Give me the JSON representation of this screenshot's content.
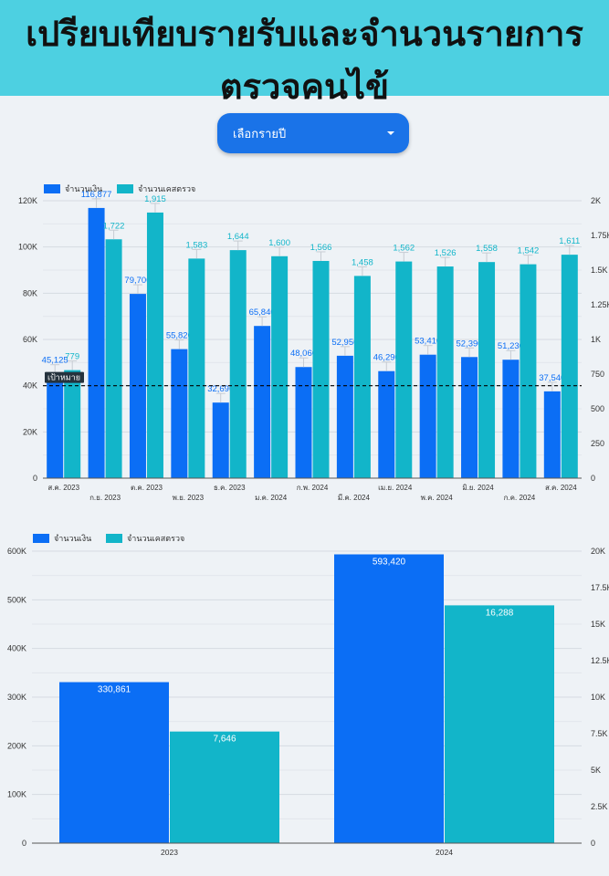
{
  "header": {
    "title": "เปรียบเทียบรายรับและจำนวนรายการตรวจคนไข้"
  },
  "filter": {
    "label": "เลือกรายปี"
  },
  "colors": {
    "header_bg": "#4dd0e1",
    "revenue": "#0b6ef5",
    "cases": "#12b5c9",
    "target_line": "#000000"
  },
  "chart_data": [
    {
      "type": "bar",
      "categories": [
        "ส.ค. 2023",
        "ก.ย. 2023",
        "ต.ค. 2023",
        "พ.ย. 2023",
        "ธ.ค. 2023",
        "ม.ค. 2024",
        "ก.พ. 2024",
        "มี.ค. 2024",
        "เม.ย. 2024",
        "พ.ค. 2024",
        "มิ.ย. 2024",
        "ก.ค. 2024",
        "ส.ค. 2024"
      ],
      "series": [
        {
          "name": "จำนวนเงิน",
          "axis": "left",
          "values": [
            45125,
            116877,
            79700,
            55820,
            32690,
            65840,
            48060,
            52950,
            46290,
            53410,
            52390,
            51230,
            37540
          ],
          "labels": [
            "45,125",
            "116,877",
            "79,700",
            "55,820",
            "32,690",
            "65,840",
            "48,060",
            "52,950",
            "46,290",
            "53,410",
            "52,390",
            "51,230",
            "37,540"
          ]
        },
        {
          "name": "จำนวนเคสตรวจ",
          "axis": "right",
          "values": [
            779,
            1722,
            1915,
            1583,
            1644,
            1600,
            1566,
            1458,
            1562,
            1526,
            1558,
            1542,
            1611
          ],
          "labels": [
            "779",
            "1,722",
            "1,915",
            "1,583",
            "1,644",
            "1,600",
            "1,566",
            "1,458",
            "1,562",
            "1,526",
            "1,558",
            "1,542",
            "1,611"
          ]
        }
      ],
      "ylim_left": [
        0,
        120000
      ],
      "yticks_left": [
        "0",
        "20K",
        "40K",
        "60K",
        "80K",
        "100K",
        "120K"
      ],
      "ylim_right": [
        0,
        2000
      ],
      "yticks_right": [
        "0",
        "250",
        "500",
        "750",
        "1K",
        "1.25K",
        "1.5K",
        "1.75K",
        "2K"
      ],
      "target": {
        "label": "เป้าหมาย",
        "value": 40000
      },
      "legend": "top-left",
      "grid": true
    },
    {
      "type": "bar",
      "categories": [
        "2023",
        "2024"
      ],
      "series": [
        {
          "name": "จำนวนเงิน",
          "axis": "left",
          "values": [
            330861,
            593420
          ],
          "labels": [
            "330,861",
            "593,420"
          ]
        },
        {
          "name": "จำนวนเคสตรวจ",
          "axis": "right",
          "values": [
            7646,
            16288
          ],
          "labels": [
            "7,646",
            "16,288"
          ]
        }
      ],
      "ylim_left": [
        0,
        600000
      ],
      "yticks_left": [
        "0",
        "100K",
        "200K",
        "300K",
        "400K",
        "500K",
        "600K"
      ],
      "ylim_right": [
        0,
        20000
      ],
      "yticks_right": [
        "0",
        "2.5K",
        "5K",
        "7.5K",
        "10K",
        "12.5K",
        "15K",
        "17.5K",
        "20K"
      ],
      "legend": "top-left",
      "grid": true
    }
  ]
}
